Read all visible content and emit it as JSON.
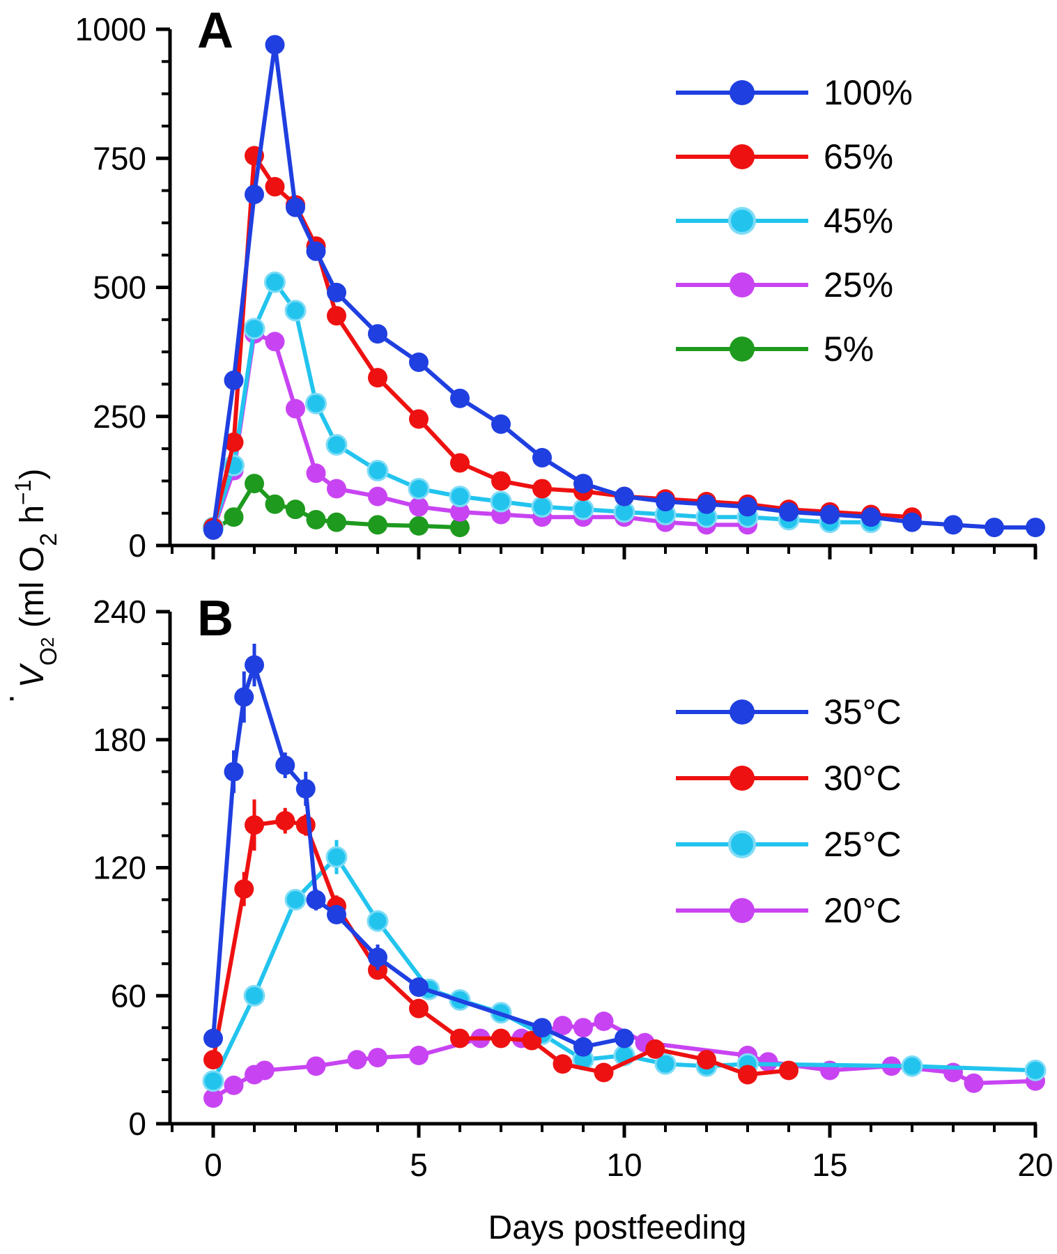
{
  "x_axis_title": "Days postfeeding",
  "y_axis_title": {
    "dot": "·",
    "v": "V",
    "sub": "O",
    "subsub": "2",
    "unit_open": " (ml O",
    "unit_sub": "2",
    "unit_h": " h",
    "unit_sup": "−1",
    "unit_close": ")"
  },
  "chart_data": [
    {
      "panel": "A",
      "type": "line",
      "xlabel": "Days postfeeding",
      "ylabel": "V̇O2 (ml O2 h−1)",
      "xlim": [
        -1,
        20
      ],
      "ylim": [
        0,
        1000
      ],
      "x_ticks": [
        0,
        5,
        10,
        15,
        20
      ],
      "y_ticks": [
        0,
        250,
        500,
        750,
        1000
      ],
      "grid": false,
      "legend_position": "top-right",
      "series": [
        {
          "name": "100%",
          "color": "#1f3fe0",
          "x": [
            0,
            0.5,
            1,
            1.5,
            2,
            2.5,
            3,
            4,
            5,
            6,
            7,
            8,
            9,
            10,
            11,
            12,
            13,
            14,
            15,
            16,
            17,
            18,
            19,
            20
          ],
          "y": [
            30,
            320,
            680,
            970,
            655,
            570,
            490,
            410,
            355,
            285,
            235,
            170,
            120,
            95,
            85,
            80,
            75,
            65,
            60,
            55,
            45,
            40,
            35,
            35
          ]
        },
        {
          "name": "65%",
          "color": "#ee1111",
          "x": [
            0,
            0.5,
            1,
            1.5,
            2,
            2.5,
            3,
            4,
            5,
            6,
            7,
            8,
            9,
            10,
            11,
            12,
            13,
            14,
            15,
            16,
            17
          ],
          "y": [
            35,
            200,
            755,
            695,
            660,
            580,
            445,
            325,
            245,
            160,
            125,
            110,
            105,
            95,
            90,
            85,
            80,
            70,
            65,
            60,
            55
          ]
        },
        {
          "name": "45%",
          "color": "#22c4ee",
          "x": [
            0,
            0.5,
            1,
            1.5,
            2,
            2.5,
            3,
            4,
            5,
            6,
            7,
            8,
            9,
            10,
            11,
            12,
            13,
            14,
            15,
            16
          ],
          "y": [
            35,
            155,
            420,
            510,
            455,
            275,
            195,
            145,
            110,
            95,
            85,
            75,
            70,
            65,
            60,
            55,
            55,
            50,
            45,
            45
          ]
        },
        {
          "name": "25%",
          "color": "#c844f2",
          "x": [
            0,
            0.5,
            1,
            1.5,
            2,
            2.5,
            3,
            4,
            5,
            6,
            7,
            8,
            9,
            10,
            11,
            12,
            13
          ],
          "y": [
            30,
            145,
            410,
            395,
            265,
            140,
            110,
            95,
            75,
            65,
            60,
            55,
            55,
            55,
            45,
            40,
            40
          ]
        },
        {
          "name": "5%",
          "color": "#1e9a1e",
          "x": [
            0,
            0.5,
            1,
            1.5,
            2,
            2.5,
            3,
            4,
            5,
            6
          ],
          "y": [
            30,
            55,
            120,
            80,
            70,
            50,
            45,
            40,
            38,
            35
          ]
        }
      ]
    },
    {
      "panel": "B",
      "type": "line",
      "xlabel": "Days postfeeding",
      "ylabel": "V̇O2 (ml O2 h−1)",
      "xlim": [
        -1,
        20
      ],
      "ylim": [
        0,
        240
      ],
      "x_ticks": [
        0,
        5,
        10,
        15,
        20
      ],
      "y_ticks": [
        0,
        60,
        120,
        180,
        240
      ],
      "grid": false,
      "legend_position": "top-right",
      "series": [
        {
          "name": "35°C",
          "color": "#1f3fe0",
          "x": [
            0,
            0.5,
            0.75,
            1,
            1.75,
            2.25,
            2.5,
            3,
            4,
            5,
            8,
            9,
            10
          ],
          "y": [
            40,
            165,
            200,
            215,
            168,
            157,
            105,
            98,
            78,
            64,
            45,
            36,
            40
          ],
          "err": [
            4,
            10,
            12,
            10,
            6,
            8,
            5,
            4,
            6,
            3,
            3,
            3,
            3
          ]
        },
        {
          "name": "30°C",
          "color": "#ee1111",
          "x": [
            0,
            0.75,
            1,
            1.75,
            2.25,
            3,
            4,
            5,
            6,
            7,
            7.75,
            8.5,
            9.5,
            10.75,
            12,
            13,
            14
          ],
          "y": [
            30,
            110,
            140,
            142,
            140,
            102,
            72,
            54,
            40,
            40,
            39,
            28,
            24,
            35,
            30,
            23,
            25
          ],
          "err": [
            3,
            8,
            12,
            6,
            5,
            5,
            4,
            3,
            3,
            3,
            3,
            2,
            2,
            2,
            2,
            2,
            2
          ]
        },
        {
          "name": "25°C",
          "color": "#22c4ee",
          "x": [
            0,
            1,
            2,
            3,
            4,
            5.25,
            6,
            7,
            8,
            9,
            10,
            11,
            12,
            13,
            17,
            20
          ],
          "y": [
            20,
            60,
            105,
            125,
            95,
            63,
            58,
            52,
            42,
            30,
            32,
            28,
            27,
            28,
            27,
            25
          ],
          "err": [
            2,
            3,
            4,
            8,
            5,
            3,
            3,
            3,
            2,
            2,
            2,
            2,
            2,
            2,
            2,
            2
          ]
        },
        {
          "name": "20°C",
          "color": "#c844f2",
          "x": [
            0,
            0.5,
            1,
            1.25,
            2.5,
            3.5,
            4,
            5,
            6.5,
            7.5,
            8.5,
            9,
            9.5,
            10.5,
            13,
            13.5,
            15,
            16.5,
            18,
            18.5,
            20
          ],
          "y": [
            12,
            18,
            23,
            25,
            27,
            30,
            31,
            32,
            40,
            40,
            46,
            45,
            48,
            38,
            32,
            29,
            25,
            27,
            24,
            19,
            20
          ],
          "err": [
            1,
            1,
            2,
            2,
            2,
            2,
            2,
            2,
            3,
            3,
            3,
            3,
            3,
            3,
            2,
            2,
            2,
            2,
            2,
            2,
            2
          ]
        }
      ]
    }
  ]
}
